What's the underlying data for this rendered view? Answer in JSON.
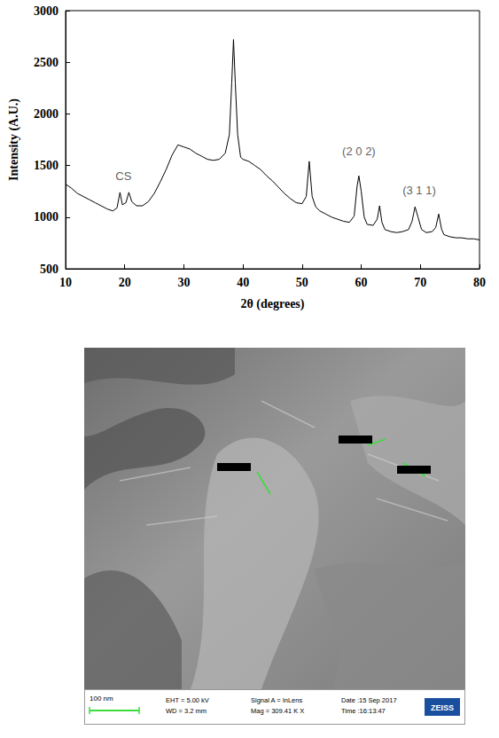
{
  "chart_data": {
    "type": "line",
    "color": "#000000",
    "x_label": "2θ (degrees)",
    "y_label": "Intensity (A.U.)",
    "x": [
      10,
      11,
      12,
      13,
      14,
      15,
      16,
      17,
      18,
      18.7,
      19.2,
      19.6,
      20.2,
      20.7,
      21.2,
      22,
      23,
      24,
      25,
      26,
      27,
      28,
      29,
      30,
      31,
      32,
      33,
      34,
      35,
      36,
      37,
      37.7,
      38.1,
      38.4,
      38.7,
      39.1,
      39.6,
      40,
      41,
      42,
      43,
      44,
      45,
      46,
      47,
      48,
      49,
      50,
      50.7,
      51.2,
      51.7,
      52.3,
      53,
      54,
      55,
      56,
      57,
      58,
      58.8,
      59.3,
      59.6,
      60,
      60.5,
      61,
      62,
      62.7,
      63.1,
      63.5,
      64,
      65,
      66,
      67,
      68,
      68.6,
      69.1,
      69.6,
      70.2,
      71,
      72,
      72.6,
      73.1,
      73.6,
      74,
      75,
      76,
      77,
      78,
      79,
      80
    ],
    "values": [
      1320,
      1280,
      1230,
      1200,
      1170,
      1140,
      1110,
      1080,
      1060,
      1090,
      1240,
      1120,
      1140,
      1240,
      1150,
      1110,
      1110,
      1150,
      1230,
      1340,
      1460,
      1600,
      1700,
      1680,
      1660,
      1620,
      1590,
      1560,
      1550,
      1560,
      1620,
      1800,
      2300,
      2720,
      2300,
      1800,
      1580,
      1560,
      1540,
      1500,
      1460,
      1400,
      1350,
      1290,
      1230,
      1180,
      1140,
      1130,
      1200,
      1540,
      1200,
      1100,
      1060,
      1030,
      1000,
      980,
      960,
      950,
      1010,
      1300,
      1400,
      1250,
      1000,
      930,
      920,
      980,
      1110,
      950,
      880,
      860,
      850,
      860,
      880,
      960,
      1100,
      1000,
      880,
      850,
      860,
      900,
      1030,
      880,
      830,
      810,
      800,
      800,
      790,
      790,
      780
    ],
    "xlim": [
      10,
      80
    ],
    "xticks": [
      10,
      20,
      30,
      40,
      50,
      60,
      70,
      80
    ],
    "ylim": [
      500,
      3000
    ],
    "yticks": [
      500,
      1000,
      1500,
      2000,
      2500,
      3000
    ],
    "grid": false,
    "annotations": [
      {
        "text": "CS",
        "x": 19.8,
        "y": 1400
      },
      {
        "text": "(2 0 2)",
        "x": 59.6,
        "y": 1640
      },
      {
        "text": "(3 1 1)",
        "x": 69.8,
        "y": 1260
      }
    ]
  },
  "sem_image": {
    "scale_bar": "100 nm",
    "info": [
      [
        "EHT = 5.00 kV",
        "WD = 3.2 mm"
      ],
      [
        "Signal A = InLens",
        "Mag = 309.41 K X"
      ],
      [
        "Date :15 Sep 2017",
        "Time :16:13:47"
      ]
    ],
    "brand": "ZEISS"
  }
}
